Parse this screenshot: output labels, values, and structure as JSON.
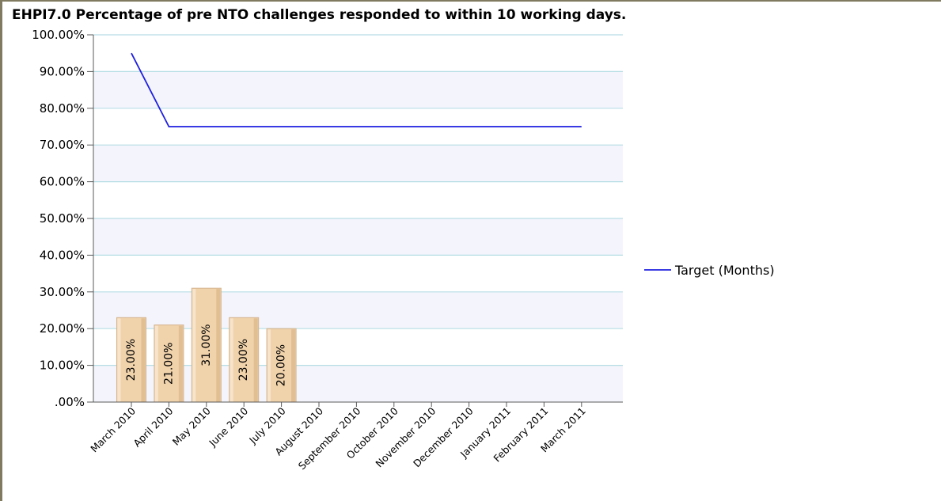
{
  "chart_data": {
    "type": "bar",
    "title": "EHPI7.0 Percentage of pre NTO challenges responded to within 10 working days.",
    "categories": [
      "March 2010",
      "April 2010",
      "May 2010",
      "June 2010",
      "July 2010",
      "August 2010",
      "September 2010",
      "October 2010",
      "November 2010",
      "December 2010",
      "January 2011",
      "February 2011",
      "March 2011"
    ],
    "y_tick_labels": [
      "100.00%",
      "90.00%",
      "80.00%",
      "70.00%",
      "60.00%",
      "50.00%",
      "40.00%",
      "30.00%",
      "20.00%",
      "10.00%",
      ".00%"
    ],
    "ylim": [
      0,
      100
    ],
    "grid": true,
    "legend_position": "right",
    "bars": {
      "values": [
        23,
        21,
        31,
        23,
        20,
        null,
        null,
        null,
        null,
        null,
        null,
        null,
        null
      ],
      "labels": [
        "23.00%",
        "21.00%",
        "31.00%",
        "23.00%",
        "20.00%"
      ],
      "color": "#f0d2ab"
    },
    "series": [
      {
        "name": "Target (Months)",
        "type": "line",
        "color": "#1f1fe0",
        "values": [
          95,
          75,
          75,
          75,
          75,
          75,
          75,
          75,
          75,
          75,
          75,
          75,
          75
        ]
      }
    ]
  }
}
